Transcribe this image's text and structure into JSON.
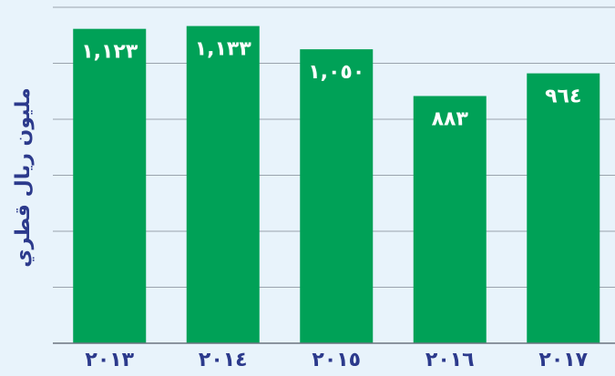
{
  "chart_data": {
    "type": "bar",
    "y_label": "مليون ريال قطري",
    "categories": [
      "٢٠١٣",
      "٢٠١٤",
      "٢٠١٥",
      "٢٠١٦",
      "٢٠١٧"
    ],
    "values": [
      1123,
      1133,
      1050,
      883,
      964
    ],
    "value_labels": [
      "١,١٢٣",
      "١,١٣٣",
      "١,٠٥٠",
      "٨٨٣",
      "٩٦٤"
    ],
    "color": "#00a157",
    "ylim": [
      0,
      1200
    ],
    "yticks": [
      0,
      200,
      400,
      600,
      800,
      1000,
      1200
    ],
    "grid": true
  }
}
